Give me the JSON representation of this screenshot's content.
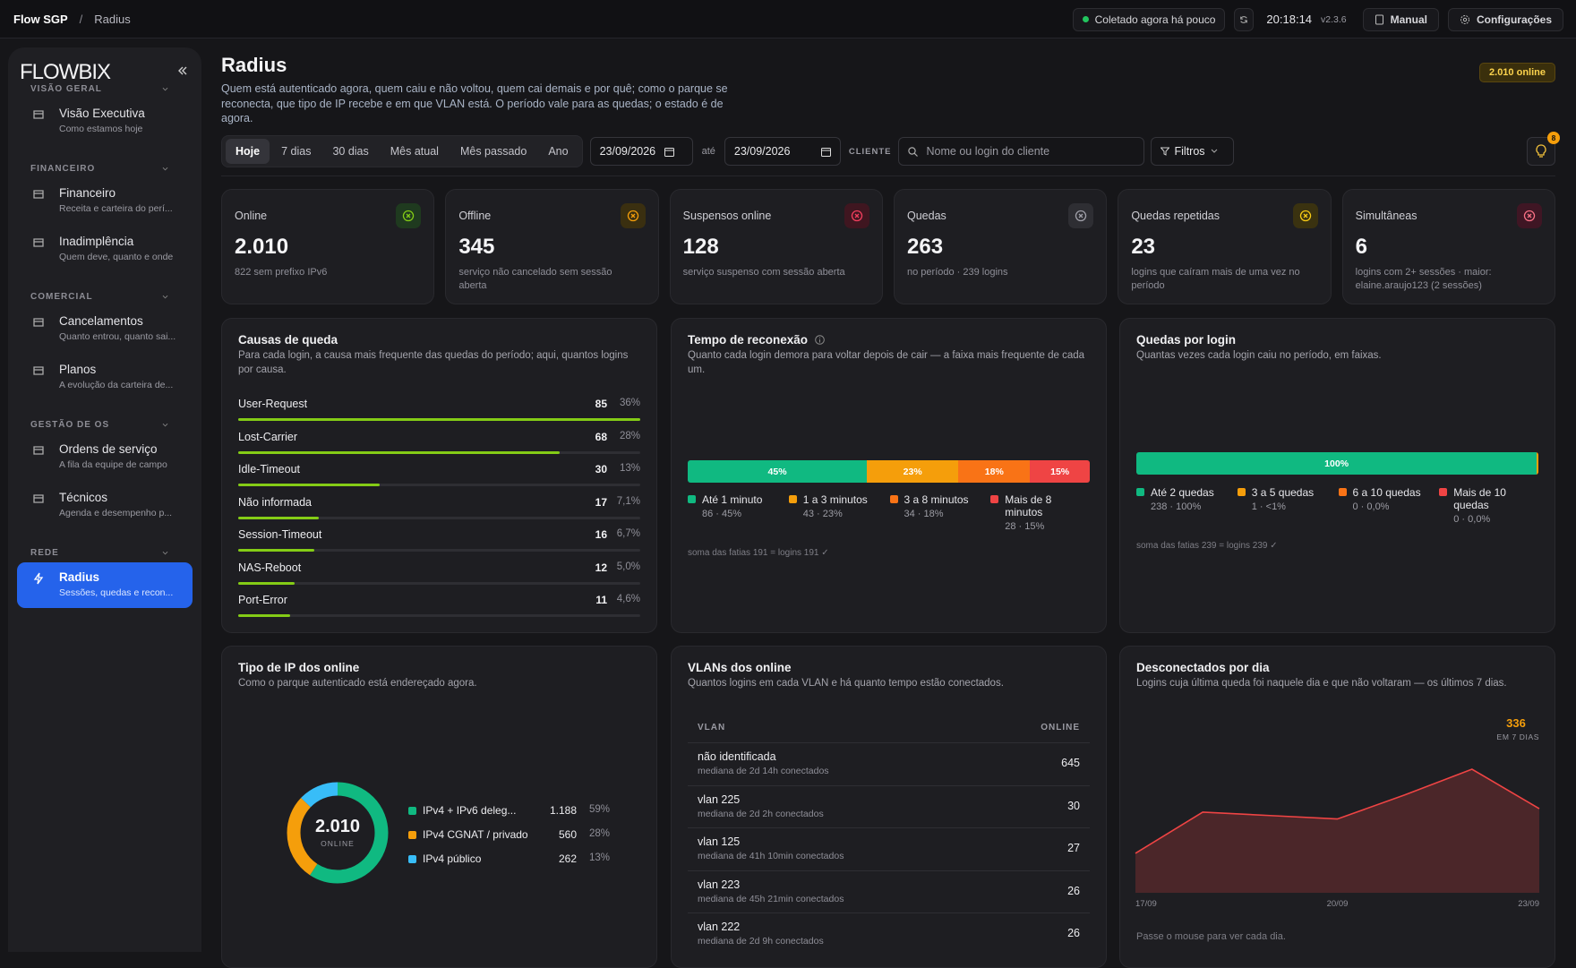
{
  "topbar": {
    "brand": "Flow SGP",
    "separator": "/",
    "page": "Radius",
    "status": "Coletado agora há pouco",
    "time": "20:18:14",
    "version": "v2.3.6",
    "manual": "Manual",
    "settings": "Configurações"
  },
  "sidebar": {
    "logo": "FLOWBIX",
    "sections": [
      {
        "title": "VISÃO GERAL",
        "items": [
          {
            "label": "Visão Executiva",
            "sub": "Como estamos hoje"
          }
        ]
      },
      {
        "title": "FINANCEIRO",
        "items": [
          {
            "label": "Financeiro",
            "sub": "Receita e carteira do perí..."
          },
          {
            "label": "Inadimplência",
            "sub": "Quem deve, quanto e onde"
          }
        ]
      },
      {
        "title": "COMERCIAL",
        "items": [
          {
            "label": "Cancelamentos",
            "sub": "Quanto entrou, quanto sai..."
          },
          {
            "label": "Planos",
            "sub": "A evolução da carteira de..."
          }
        ]
      },
      {
        "title": "GESTÃO DE OS",
        "items": [
          {
            "label": "Ordens de serviço",
            "sub": "A fila da equipe de campo"
          },
          {
            "label": "Técnicos",
            "sub": "Agenda e desempenho p..."
          }
        ]
      },
      {
        "title": "REDE",
        "items": [
          {
            "label": "Radius",
            "sub": "Sessões, quedas e recon...",
            "active": true
          }
        ]
      }
    ]
  },
  "header": {
    "title": "Radius",
    "description": "Quem está autenticado agora, quem caiu e não voltou, quem cai demais e por quê; como o parque se reconecta, que tipo de IP recebe e em que VLAN está. O período vale para as quedas; o estado é de agora.",
    "badge": "2.010 online"
  },
  "filters": {
    "periods": [
      "Hoje",
      "7 dias",
      "30 dias",
      "Mês atual",
      "Mês passado",
      "Ano"
    ],
    "active_period": "Hoje",
    "from": "23/09/2026",
    "until": "até",
    "to": "23/09/2026",
    "client_label": "CLIENTE",
    "search_placeholder": "Nome ou login do cliente",
    "filters_button": "Filtros",
    "notifications": "8"
  },
  "kpis": [
    {
      "label": "Online",
      "value": "2.010",
      "note": "822 sem prefixo IPv6"
    },
    {
      "label": "Offline",
      "value": "345",
      "note": "serviço não cancelado sem sessão aberta"
    },
    {
      "label": "Suspensos online",
      "value": "128",
      "note": "serviço suspenso com sessão aberta"
    },
    {
      "label": "Quedas",
      "value": "263",
      "note": "no período · 239 logins"
    },
    {
      "label": "Quedas repetidas",
      "value": "23",
      "note": "logins que caíram mais de uma vez no período"
    },
    {
      "label": "Simultâneas",
      "value": "6",
      "note": "logins com 2+ sessões · maior: elaine.araujo123 (2 sessões)"
    }
  ],
  "causes": {
    "title": "Causas de queda",
    "subtitle": "Para cada login, a causa mais frequente das quedas do período; aqui, quantos logins por causa.",
    "rows": [
      {
        "name": "User-Request",
        "count": 85,
        "pct": "36%"
      },
      {
        "name": "Lost-Carrier",
        "count": 68,
        "pct": "28%"
      },
      {
        "name": "Idle-Timeout",
        "count": 30,
        "pct": "13%"
      },
      {
        "name": "Não informada",
        "count": 17,
        "pct": "7,1%"
      },
      {
        "name": "Session-Timeout",
        "count": 16,
        "pct": "6,7%"
      },
      {
        "name": "NAS-Reboot",
        "count": 12,
        "pct": "5,0%"
      },
      {
        "name": "Port-Error",
        "count": 11,
        "pct": "4,6%"
      }
    ]
  },
  "reconnect": {
    "title": "Tempo de reconexão",
    "subtitle": "Quanto cada login demora para voltar depois de cair — a faixa mais frequente de cada um.",
    "categories": [
      "Até 1 minuto",
      "1 a 3 minutos",
      "3 a 8 minutos",
      "Mais de 8 minutos"
    ],
    "values": [
      45,
      23,
      18,
      15
    ],
    "value_labels": [
      "45%",
      "23%",
      "18%",
      "15%"
    ],
    "details": [
      "86 · 45%",
      "43 · 23%",
      "34 · 18%",
      "28 · 15%"
    ],
    "colors": [
      "#10b981",
      "#f59e0b",
      "#f97316",
      "#ef4444"
    ],
    "footnote": "soma das fatias 191 = logins 191 ✓"
  },
  "drops_per_login": {
    "title": "Quedas por login",
    "subtitle": "Quantas vezes cada login caiu no período, em faixas.",
    "categories": [
      "Até 2 quedas",
      "3 a 5 quedas",
      "6 a 10 quedas",
      "Mais de 10 quedas"
    ],
    "values": [
      99.6,
      0.4,
      0,
      0
    ],
    "value_labels": [
      "100%",
      null,
      null,
      null
    ],
    "details": [
      "238 · 100%",
      "1 · <1%",
      "0 · 0,0%",
      "0 · 0,0%"
    ],
    "colors": [
      "#10b981",
      "#f59e0b",
      "#f97316",
      "#ef4444"
    ],
    "footnote": "soma das fatias 239 = logins 239 ✓"
  },
  "ip_types": {
    "title": "Tipo de IP dos online",
    "subtitle": "Como o parque autenticado está endereçado agora.",
    "center_value": "2.010",
    "center_label": "ONLINE",
    "categories": [
      "IPv4 + IPv6 deleg...",
      "IPv4 CGNAT / privado",
      "IPv4 público"
    ],
    "values": [
      1188,
      560,
      262
    ],
    "value_labels": [
      "1.188",
      "560",
      "262"
    ],
    "pcts": [
      "59%",
      "28%",
      "13%"
    ],
    "colors": [
      "#10b981",
      "#f59e0b",
      "#38bdf8"
    ]
  },
  "vlans": {
    "title": "VLANs dos online",
    "subtitle": "Quantos logins em cada VLAN e há quanto tempo estão conectados.",
    "columns": [
      "VLAN",
      "ONLINE"
    ],
    "rows": [
      {
        "name": "não identificada",
        "sub": "mediana de 2d 14h conectados",
        "online": "645"
      },
      {
        "name": "vlan 225",
        "sub": "mediana de 2d 2h conectados",
        "online": "30"
      },
      {
        "name": "vlan 125",
        "sub": "mediana de 41h 10min conectados",
        "online": "27"
      },
      {
        "name": "vlan 223",
        "sub": "mediana de 45h 21min conectados",
        "online": "26"
      },
      {
        "name": "vlan 222",
        "sub": "mediana de 2d 9h conectados",
        "online": "26"
      }
    ]
  },
  "disconnected": {
    "type": "area",
    "title": "Desconectados por dia",
    "subtitle": "Logins cuja última queda foi naquele dia e que não voltaram — os últimos 7 dias.",
    "total": "336",
    "total_label": "EM 7 DIAS",
    "categories": [
      "17/09",
      null,
      null,
      "20/09",
      null,
      null,
      "23/09"
    ],
    "values": [
      23,
      47,
      45,
      43,
      57,
      72,
      49
    ],
    "color": "#ef4444",
    "footnote": "Passe o mouse para ver cada dia."
  }
}
